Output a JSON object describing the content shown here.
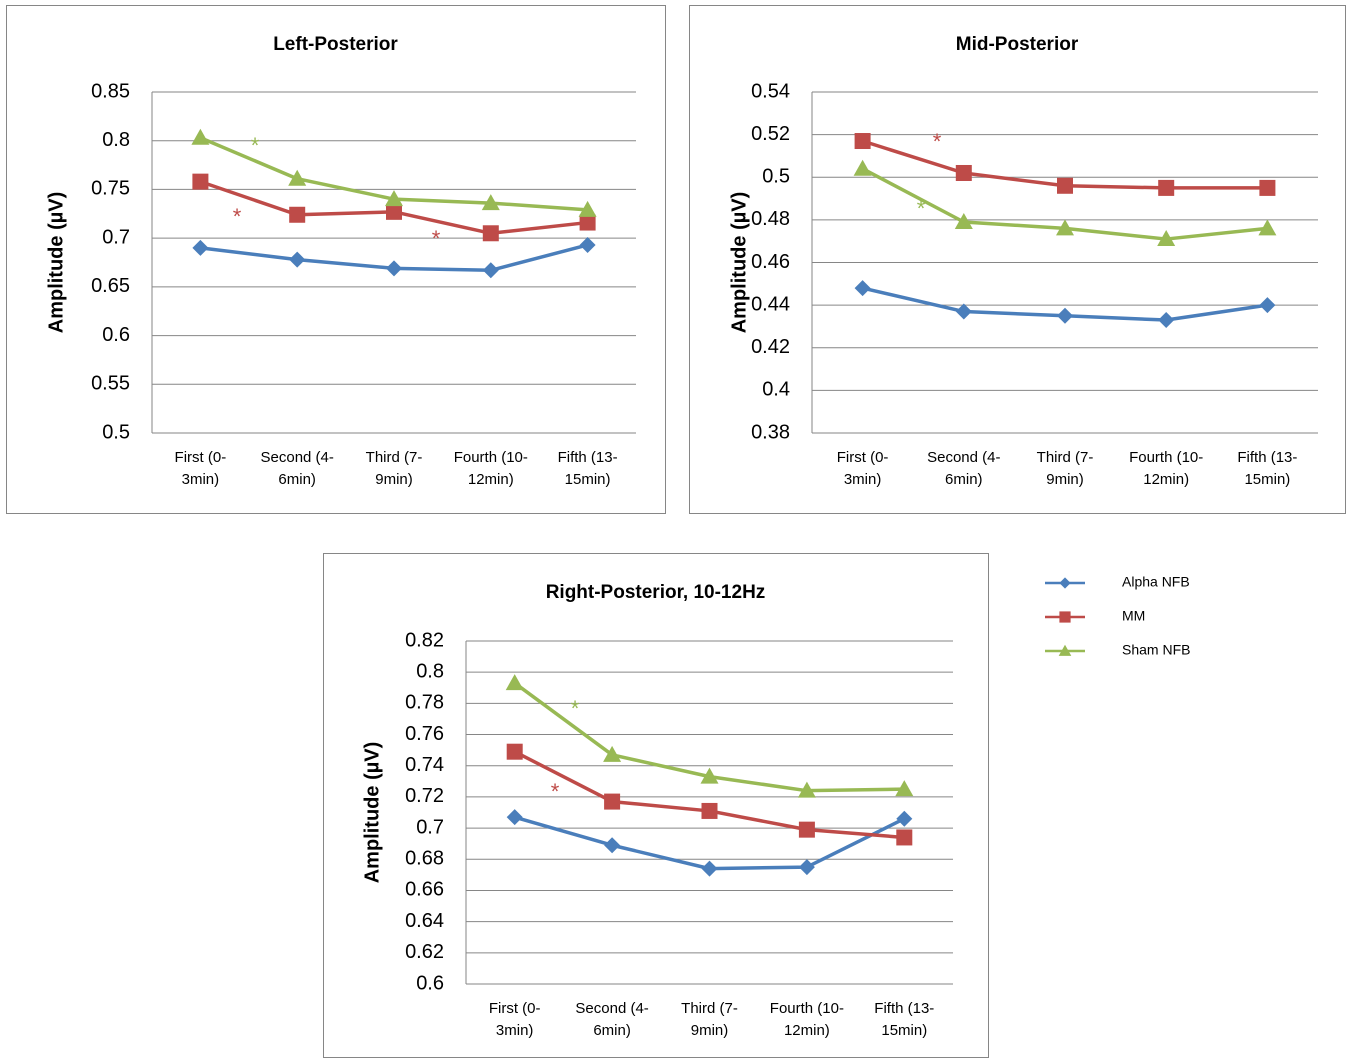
{
  "chart_data": [
    {
      "type": "line",
      "title": "Left-Posterior",
      "ylabel": "Amplitude (µV)",
      "categories": [
        "First (0-3min)",
        "Second (4-6min)",
        "Third (7-9min)",
        "Fourth (10-12min)",
        "Fifth (13-15min)"
      ],
      "ylim": [
        0.5,
        0.85
      ],
      "yticks": [
        0.5,
        0.55,
        0.6,
        0.65,
        0.7,
        0.75,
        0.8,
        0.85
      ],
      "grid": true,
      "series": [
        {
          "color": "#4a7ebb",
          "marker": "diamond",
          "values": [
            0.69,
            0.678,
            0.669,
            0.667,
            0.693
          ]
        },
        {
          "color": "#be4b48",
          "marker": "square",
          "values": [
            0.758,
            0.724,
            0.727,
            0.705,
            0.716
          ]
        },
        {
          "color": "#98b954",
          "marker": "triangle",
          "values": [
            0.803,
            0.761,
            0.74,
            0.736,
            0.729
          ]
        }
      ],
      "annotations": [
        {
          "text": "*",
          "color": "#98b954"
        },
        {
          "text": "*",
          "color": "#be4b48"
        },
        {
          "text": "*",
          "color": "#be4b48"
        }
      ]
    },
    {
      "type": "line",
      "title": "Mid-Posterior",
      "ylabel": "Amplitude (µV)",
      "categories": [
        "First (0-3min)",
        "Second (4-6min)",
        "Third (7-9min)",
        "Fourth (10-12min)",
        "Fifth (13-15min)"
      ],
      "ylim": [
        0.38,
        0.54
      ],
      "yticks": [
        0.38,
        0.4,
        0.42,
        0.44,
        0.46,
        0.48,
        0.5,
        0.52,
        0.54
      ],
      "grid": true,
      "series": [
        {
          "color": "#4a7ebb",
          "marker": "diamond",
          "values": [
            0.448,
            0.437,
            0.435,
            0.433,
            0.44
          ]
        },
        {
          "color": "#be4b48",
          "marker": "square",
          "values": [
            0.517,
            0.502,
            0.496,
            0.495,
            0.495
          ]
        },
        {
          "color": "#98b954",
          "marker": "triangle",
          "values": [
            0.504,
            0.479,
            0.476,
            0.471,
            0.476
          ]
        }
      ],
      "annotations": [
        {
          "text": "*",
          "color": "#be4b48"
        },
        {
          "text": "*",
          "color": "#98b954"
        }
      ]
    },
    {
      "type": "line",
      "title": "Right-Posterior, 10-12Hz",
      "ylabel": "Amplitude (µV)",
      "categories": [
        "First (0-3min)",
        "Second (4-6min)",
        "Third (7-9min)",
        "Fourth (10-12min)",
        "Fifth (13-15min)"
      ],
      "ylim": [
        0.6,
        0.82
      ],
      "yticks": [
        0.6,
        0.62,
        0.64,
        0.66,
        0.68,
        0.7,
        0.72,
        0.74,
        0.76,
        0.78,
        0.8,
        0.82
      ],
      "grid": true,
      "legend": "right",
      "series": [
        {
          "name": "Alpha NFB",
          "color": "#4a7ebb",
          "marker": "diamond",
          "values": [
            0.707,
            0.689,
            0.674,
            0.675,
            0.706
          ]
        },
        {
          "name": "MM",
          "color": "#be4b48",
          "marker": "square",
          "values": [
            0.749,
            0.717,
            0.711,
            0.699,
            0.694
          ]
        },
        {
          "name": "Sham NFB",
          "color": "#98b954",
          "marker": "triangle",
          "values": [
            0.793,
            0.747,
            0.733,
            0.724,
            0.725
          ]
        }
      ],
      "annotations": [
        {
          "text": "*",
          "color": "#98b954"
        },
        {
          "text": "*",
          "color": "#be4b48"
        }
      ]
    }
  ]
}
